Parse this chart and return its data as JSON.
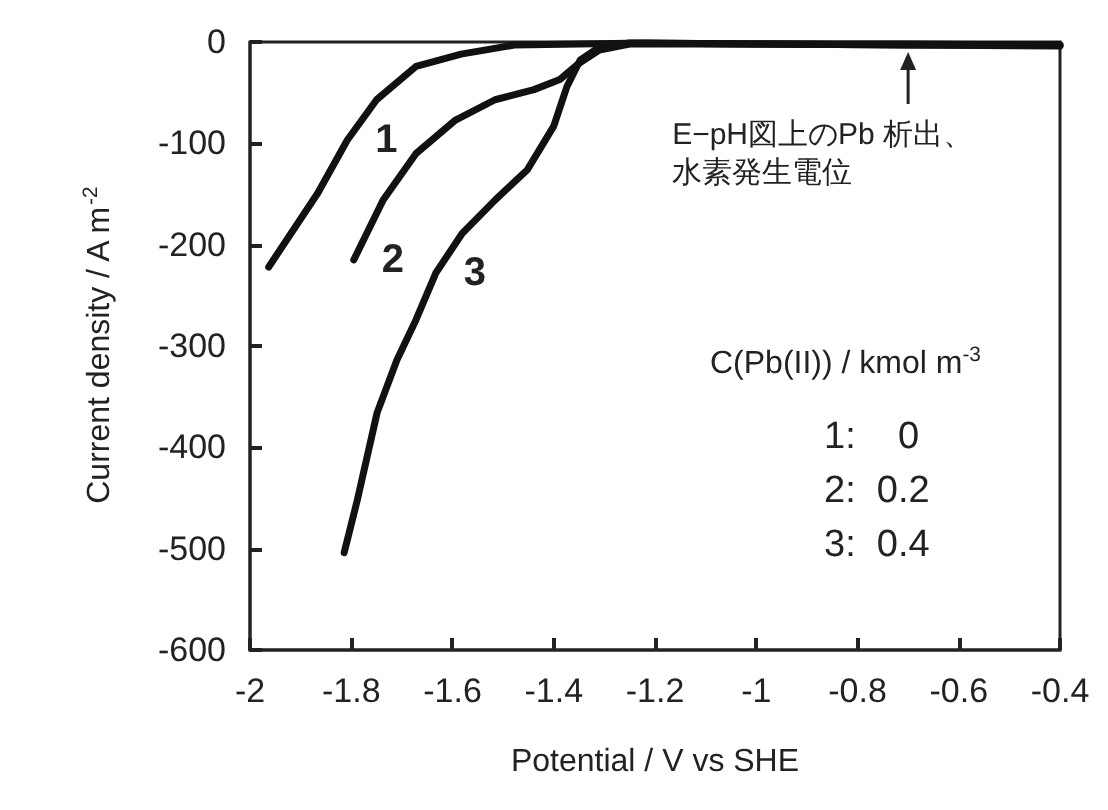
{
  "chart_data": {
    "type": "line",
    "xlabel": "Potential / V vs SHE",
    "ylabel": "Current density / A m$^{-2}$",
    "legend_title": "C(Pb(II)) / kmol m$^{-3}$",
    "xlim": [
      -2,
      -0.4
    ],
    "xticks": [
      -2,
      -1.8,
      -1.6,
      -1.4,
      -1.2,
      -1,
      -0.8,
      -0.6,
      -0.4
    ],
    "ylim": [
      -600,
      0
    ],
    "yticks": [
      -600,
      -500,
      -400,
      -300,
      -200,
      -100,
      0
    ],
    "grid": false,
    "legend": false,
    "marker": "none",
    "line_style": "solid",
    "annotations": [
      {
        "text": "E−pH図上のPb 析出、水素発生電位",
        "x": -0.7,
        "y": -2
      },
      "1:    0",
      "2:  0.2",
      "3:  0.4"
    ],
    "series": [
      {
        "name": "1",
        "color": "#111111",
        "x": [
          -1.963,
          -1.866,
          -1.808,
          -1.75,
          -1.672,
          -1.583,
          -1.478,
          -1.22,
          -1.0,
          -0.7,
          -0.4
        ],
        "values": [
          -222,
          -149,
          -97,
          -57,
          -24,
          -12,
          -3,
          -1,
          -2,
          -2,
          -3
        ]
      },
      {
        "name": "2",
        "color": "#111111",
        "x": [
          -1.795,
          -1.737,
          -1.672,
          -1.594,
          -1.516,
          -1.439,
          -1.388,
          -1.35,
          -1.31,
          -1.25,
          -1.0,
          -0.7,
          -0.4
        ],
        "values": [
          -215,
          -156,
          -110,
          -77,
          -57,
          -47,
          -37,
          -21,
          -8,
          -2,
          -2,
          -3,
          -3
        ]
      },
      {
        "name": "3",
        "color": "#111111",
        "x": [
          -1.814,
          -1.788,
          -1.749,
          -1.71,
          -1.672,
          -1.633,
          -1.581,
          -1.516,
          -1.452,
          -1.4,
          -1.374,
          -1.348,
          -1.31,
          -1.25,
          -1.0,
          -0.7,
          -0.4
        ],
        "values": [
          -504,
          -452,
          -366,
          -314,
          -274,
          -228,
          -189,
          -156,
          -126,
          -83,
          -44,
          -18,
          -5,
          -1,
          -2,
          -3,
          -4
        ]
      }
    ]
  }
}
